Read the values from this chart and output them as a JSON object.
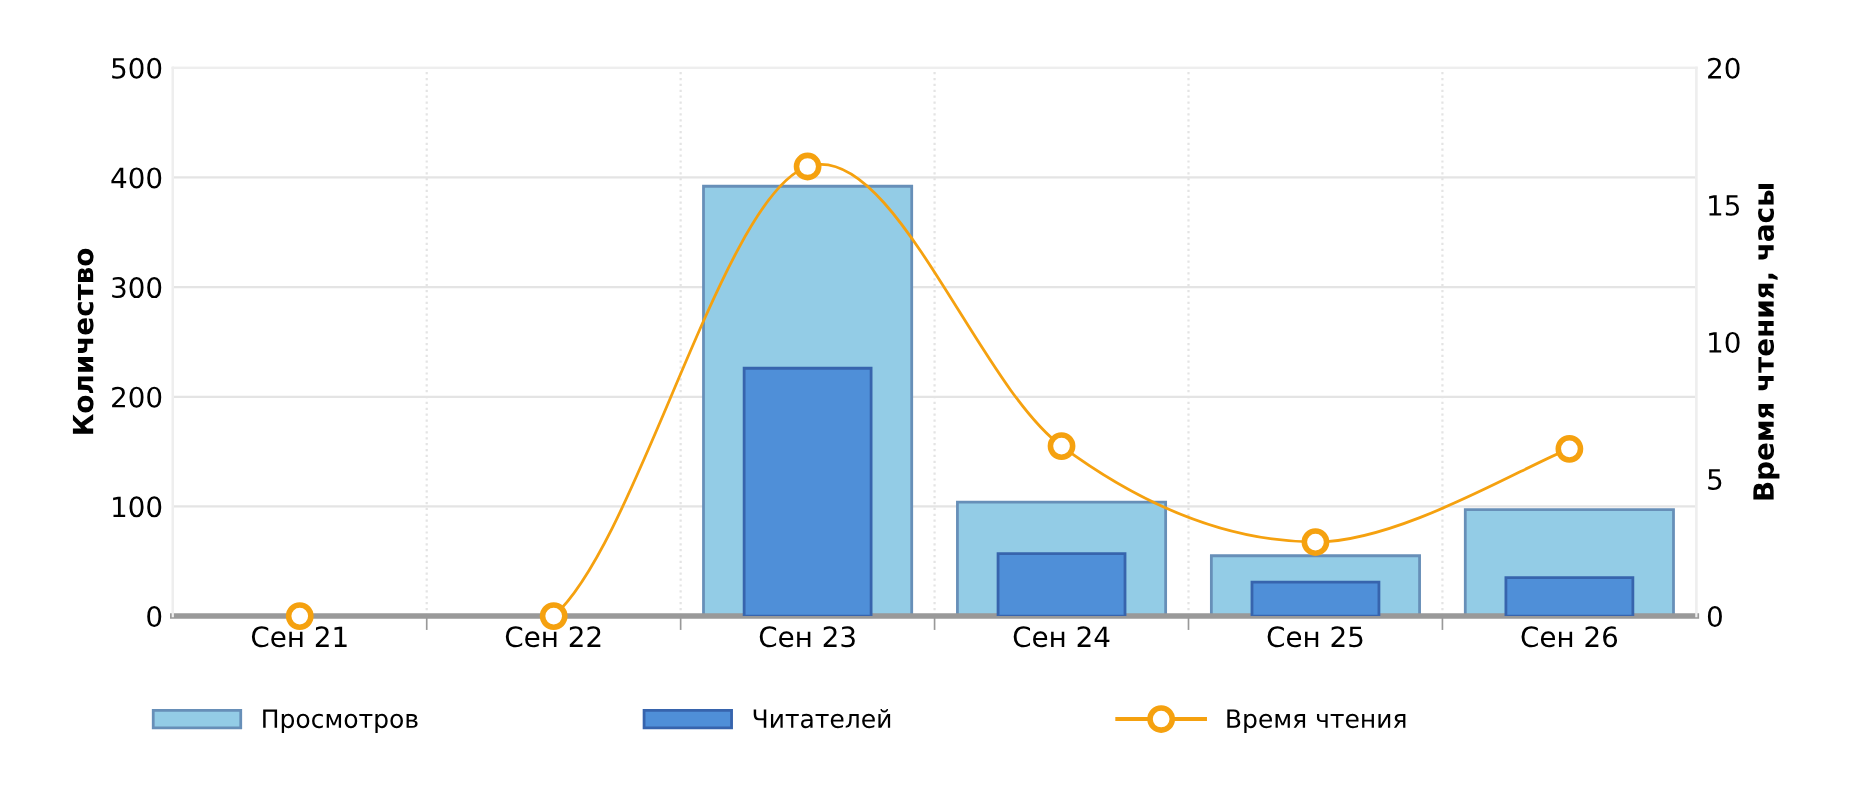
{
  "chart_data": {
    "type": "bar",
    "categories": [
      "Сен 21",
      "Сен 22",
      "Сен 23",
      "Сен 24",
      "Сен 25",
      "Сен 26"
    ],
    "ylabel": "Количество",
    "y2label": "Время чтения, часы",
    "series": [
      {
        "name": "Просмотров",
        "color": "#93cce6",
        "values": [
          null,
          null,
          392,
          104,
          55,
          97
        ]
      },
      {
        "name": "Читателей",
        "color": "#4f8fd8",
        "values": [
          null,
          null,
          226,
          57,
          31,
          35
        ]
      },
      {
        "name": "Время чтения",
        "type": "line",
        "axis": "y2",
        "color": "#f5a10f",
        "values": [
          0,
          0,
          16.4,
          6.2,
          2.7,
          6.1
        ]
      }
    ],
    "ylim": [
      0,
      500
    ],
    "yticks": [
      0,
      100,
      200,
      300,
      400,
      500
    ],
    "y2lim": [
      0,
      20
    ],
    "y2ticks": [
      0,
      5,
      10,
      15,
      20
    ],
    "grid": true,
    "legend": "bottom",
    "marker": "circle"
  }
}
